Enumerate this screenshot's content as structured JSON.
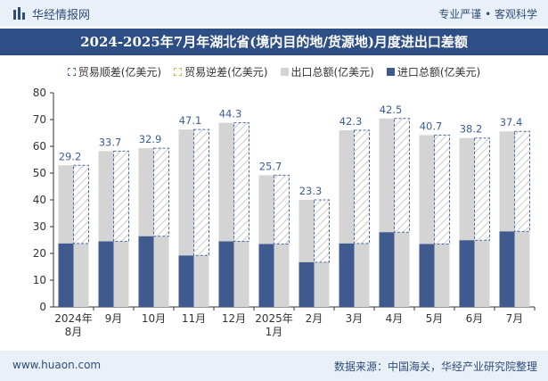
{
  "header": {
    "brand": "华经情报网",
    "tagline": "专业严谨 • 客观科学"
  },
  "title": "2024-2025年7月年湖北省(境内目的地/货源地)月度进出口差额",
  "legend": {
    "surplus": "贸易顺差(亿美元)",
    "deficit": "贸易逆差(亿美元)",
    "export": "出口总额(亿美元)",
    "import": "进口总额(亿美元)"
  },
  "footer": {
    "url": "www.huaon.com",
    "source": "数据来源：中国海关，华经产业研究院整理"
  },
  "colors": {
    "export": "#d4d4d4",
    "import": "#3f5a8e",
    "surplus_border": "#4a6fa5",
    "label": "#3b5e95",
    "title_bg": "#2e4f86"
  },
  "chart_data": {
    "type": "bar",
    "categories": [
      [
        "2024年",
        "8月"
      ],
      [
        "9月"
      ],
      [
        "10月"
      ],
      [
        "11月"
      ],
      [
        "12月"
      ],
      [
        "2025年",
        "1月"
      ],
      [
        "2月"
      ],
      [
        "3月"
      ],
      [
        "4月"
      ],
      [
        "5月"
      ],
      [
        "6月"
      ],
      [
        "7月"
      ]
    ],
    "ylim": [
      0,
      80
    ],
    "yticks": [
      0,
      10,
      20,
      30,
      40,
      50,
      60,
      70,
      80
    ],
    "grid": false,
    "legend_position": "top",
    "series": [
      {
        "name": "出口总额(亿美元)",
        "values": [
          52.9,
          58.2,
          59.3,
          66.3,
          68.8,
          49.2,
          40.0,
          66.0,
          70.4,
          64.2,
          63.1,
          65.6
        ]
      },
      {
        "name": "进口总额(亿美元)",
        "values": [
          23.7,
          24.5,
          26.4,
          19.2,
          24.5,
          23.5,
          16.7,
          23.7,
          27.9,
          23.5,
          24.9,
          28.2
        ]
      },
      {
        "name": "贸易顺差(亿美元)",
        "values": [
          29.2,
          33.7,
          32.9,
          47.1,
          44.3,
          25.7,
          23.3,
          42.3,
          42.5,
          40.7,
          38.2,
          37.4
        ]
      }
    ],
    "deficit_values": []
  }
}
